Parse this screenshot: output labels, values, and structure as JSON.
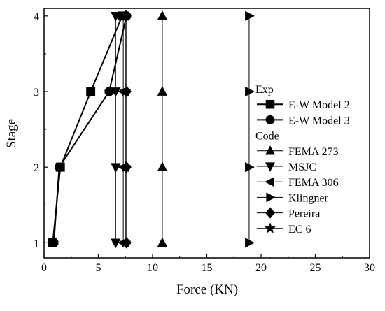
{
  "chart_data": {
    "type": "line",
    "title": "",
    "xlabel": "Force (KN)",
    "ylabel": "Stage",
    "xlim": [
      0,
      30
    ],
    "ylim": [
      0.8,
      4.1
    ],
    "xticks": [
      "0",
      "5",
      "10",
      "15",
      "20",
      "25",
      "30"
    ],
    "yticks": [
      "1",
      "2",
      "3",
      "4"
    ],
    "grid": false,
    "legend_position": "right",
    "legend_entries": [
      {
        "type": "header",
        "text": "Exp"
      },
      {
        "type": "series",
        "text": "E-W Model 2",
        "marker": "square"
      },
      {
        "type": "series",
        "text": "E-W Model 3",
        "marker": "circle"
      },
      {
        "type": "header",
        "text": "Code"
      },
      {
        "type": "series",
        "text": "FEMA 273",
        "marker": "triangle-up"
      },
      {
        "type": "series",
        "text": "MSJC",
        "marker": "triangle-down"
      },
      {
        "type": "series",
        "text": "FEMA 306",
        "marker": "triangle-left"
      },
      {
        "type": "series",
        "text": "Klingner",
        "marker": "triangle-right"
      },
      {
        "type": "series",
        "text": "Pereira",
        "marker": "diamond"
      },
      {
        "type": "series",
        "text": "EC 6",
        "marker": "star"
      }
    ],
    "series": [
      {
        "name": "E-W Model 2",
        "group": "Exp",
        "marker": "square",
        "lineWidth": 2,
        "points": [
          {
            "x": 0.8,
            "y": 1
          },
          {
            "x": 1.5,
            "y": 2
          },
          {
            "x": 4.3,
            "y": 3
          },
          {
            "x": 7.2,
            "y": 4
          }
        ]
      },
      {
        "name": "E-W Model 3",
        "group": "Exp",
        "marker": "circle",
        "lineWidth": 2,
        "points": [
          {
            "x": 0.9,
            "y": 1
          },
          {
            "x": 1.4,
            "y": 2
          },
          {
            "x": 6.0,
            "y": 3
          },
          {
            "x": 7.6,
            "y": 4
          }
        ]
      },
      {
        "name": "FEMA 273",
        "group": "Code",
        "marker": "triangle-up",
        "lineWidth": 1,
        "points": [
          {
            "x": 10.9,
            "y": 1
          },
          {
            "x": 10.9,
            "y": 2
          },
          {
            "x": 10.9,
            "y": 3
          },
          {
            "x": 10.9,
            "y": 4
          }
        ]
      },
      {
        "name": "MSJC",
        "group": "Code",
        "marker": "triangle-down",
        "lineWidth": 1,
        "points": [
          {
            "x": 6.6,
            "y": 1
          },
          {
            "x": 6.6,
            "y": 2
          },
          {
            "x": 6.6,
            "y": 3
          },
          {
            "x": 6.6,
            "y": 4
          }
        ]
      },
      {
        "name": "FEMA 306",
        "group": "Code",
        "marker": "triangle-left",
        "lineWidth": 1,
        "points": [
          {
            "x": 7.3,
            "y": 1
          },
          {
            "x": 7.3,
            "y": 2
          },
          {
            "x": 7.3,
            "y": 3
          },
          {
            "x": 7.3,
            "y": 4
          }
        ]
      },
      {
        "name": "Klingner",
        "group": "Code",
        "marker": "triangle-right",
        "lineWidth": 1,
        "points": [
          {
            "x": 18.9,
            "y": 1
          },
          {
            "x": 18.9,
            "y": 2
          },
          {
            "x": 18.9,
            "y": 3
          },
          {
            "x": 18.9,
            "y": 4
          }
        ]
      },
      {
        "name": "Pereira",
        "group": "Code",
        "marker": "diamond",
        "lineWidth": 1,
        "points": [
          {
            "x": 7.6,
            "y": 1
          },
          {
            "x": 7.6,
            "y": 2
          },
          {
            "x": 7.6,
            "y": 3
          },
          {
            "x": 7.6,
            "y": 4
          }
        ]
      },
      {
        "name": "EC 6",
        "group": "Code",
        "marker": "star",
        "lineWidth": 1,
        "points": [
          {
            "x": 7.5,
            "y": 1
          },
          {
            "x": 7.5,
            "y": 2
          },
          {
            "x": 7.5,
            "y": 3
          },
          {
            "x": 7.5,
            "y": 4
          }
        ]
      }
    ]
  }
}
